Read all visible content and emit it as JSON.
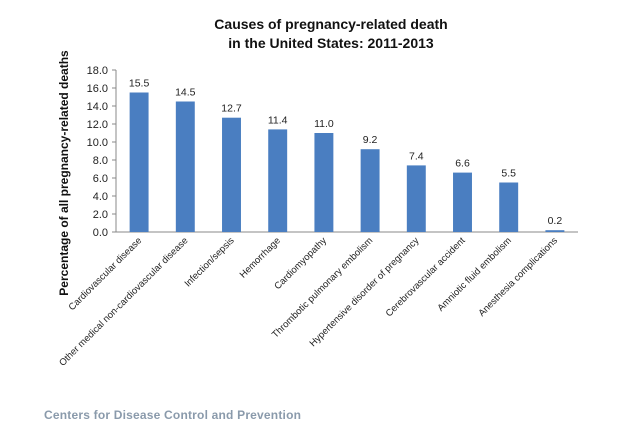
{
  "chart_data": {
    "type": "bar",
    "title_lines": [
      "Causes of pregnancy-related death",
      "in the United States: 2011-2013"
    ],
    "xlabel": "",
    "ylabel": "Percentage of all pregnancy-related deaths",
    "ylim": [
      0,
      18
    ],
    "yticks": [
      "0.0",
      "2.0",
      "4.0",
      "6.0",
      "8.0",
      "10.0",
      "12.0",
      "14.0",
      "16.0",
      "18.0"
    ],
    "categories": [
      "Cardiovascular disease",
      "Other medical non-cardiovascular disease",
      "Infection/sepsis",
      "Hemorrhage",
      "Cardiomyopathy",
      "Thrombotic pulmonary embolism",
      "Hypertensive disorder of pregnancy",
      "Cerebrovascular accident",
      "Amniotic fluid embolism",
      "Anesthesia complications"
    ],
    "values": [
      15.5,
      14.5,
      12.7,
      11.4,
      11.0,
      9.2,
      7.4,
      6.6,
      5.5,
      0.2
    ],
    "value_labels": [
      "15.5",
      "14.5",
      "12.7",
      "11.4",
      "11.0",
      "9.2",
      "7.4",
      "6.6",
      "5.5",
      "0.2"
    ],
    "bar_color": "#4a7ec1",
    "grid": false,
    "legend": "none"
  },
  "footer": {
    "source": "Centers for Disease Control and Prevention"
  },
  "colors": {
    "source_text": "#8a9aab"
  }
}
